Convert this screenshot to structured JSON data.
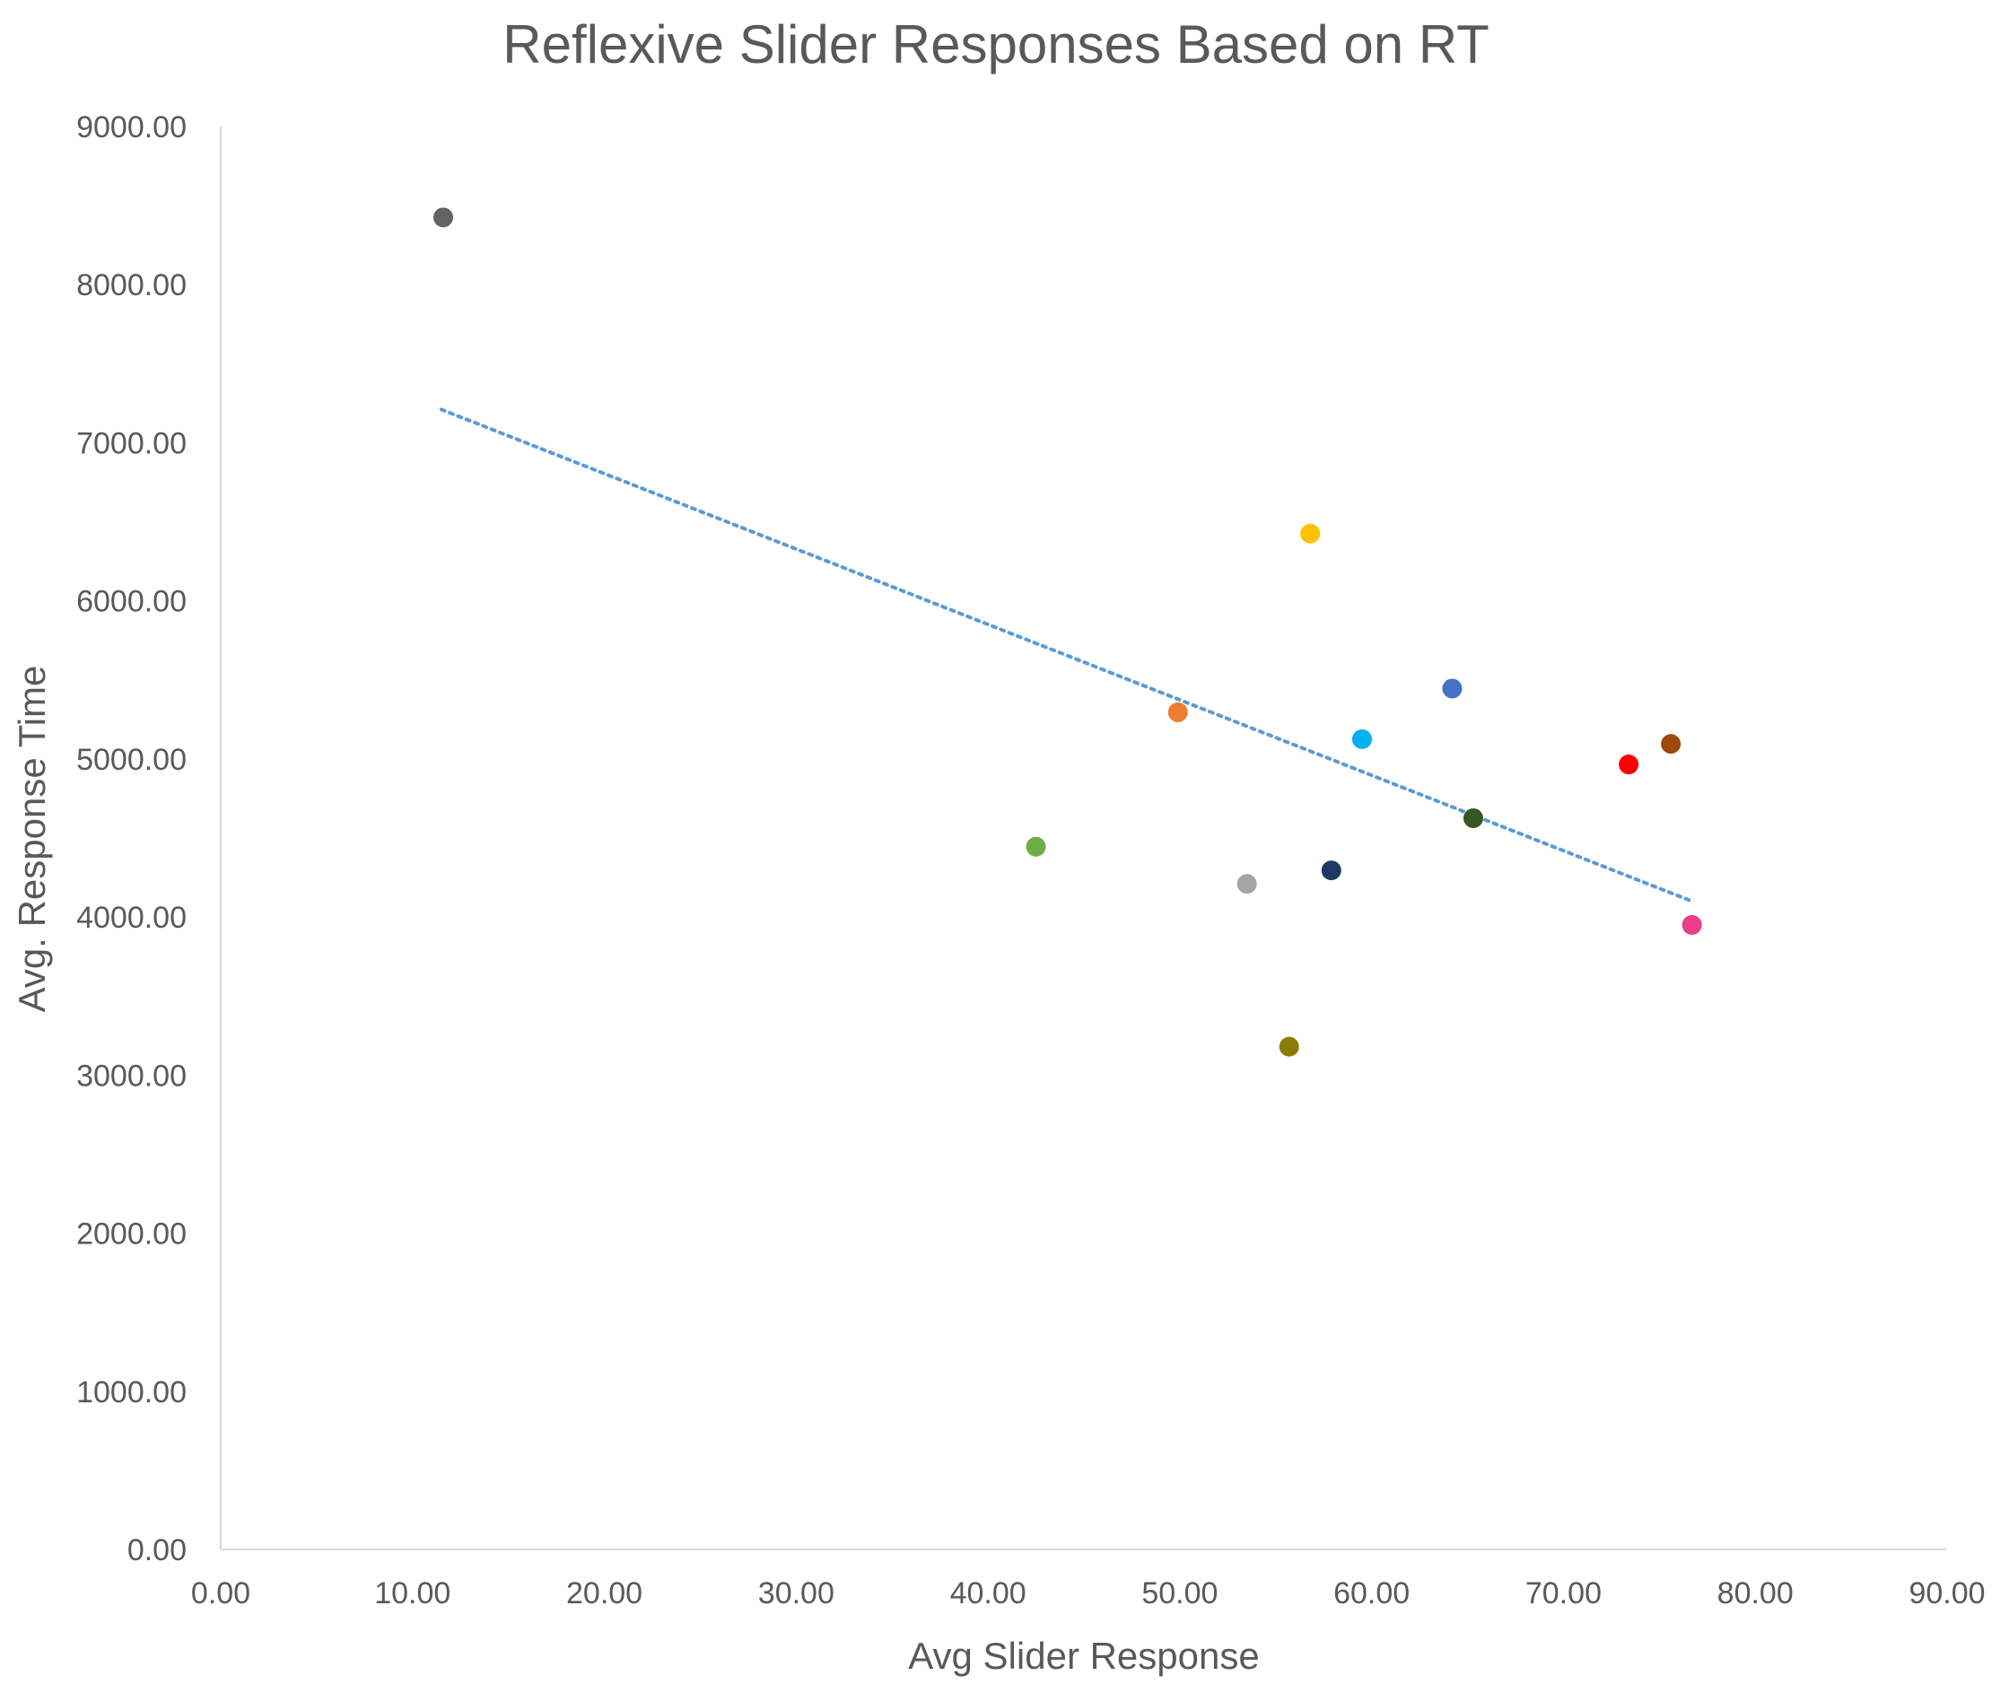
{
  "chart_data": {
    "type": "scatter",
    "title": "Reflexive Slider Responses Based on RT",
    "xlabel": "Avg Slider Response",
    "ylabel": "Avg. Response Time",
    "xlim": [
      0,
      90
    ],
    "ylim": [
      0,
      9000
    ],
    "x_ticks": [
      "0.00",
      "10.00",
      "20.00",
      "30.00",
      "40.00",
      "50.00",
      "60.00",
      "70.00",
      "80.00",
      "90.00"
    ],
    "y_ticks": [
      "0.00",
      "1000.00",
      "2000.00",
      "3000.00",
      "4000.00",
      "5000.00",
      "6000.00",
      "7000.00",
      "8000.00",
      "9000.00"
    ],
    "grid": false,
    "legend": "none",
    "points": [
      {
        "x": 11.6,
        "y": 8425,
        "color": "#636363"
      },
      {
        "x": 42.5,
        "y": 4445,
        "color": "#70ad47"
      },
      {
        "x": 49.9,
        "y": 5295,
        "color": "#ed7d31"
      },
      {
        "x": 53.5,
        "y": 4210,
        "color": "#a5a5a5"
      },
      {
        "x": 55.7,
        "y": 3180,
        "color": "#8c7b00"
      },
      {
        "x": 56.8,
        "y": 6425,
        "color": "#ffc000"
      },
      {
        "x": 57.9,
        "y": 4295,
        "color": "#1f3864"
      },
      {
        "x": 59.5,
        "y": 5125,
        "color": "#00b0f0"
      },
      {
        "x": 64.2,
        "y": 5445,
        "color": "#4472c4"
      },
      {
        "x": 65.3,
        "y": 4625,
        "color": "#375623"
      },
      {
        "x": 73.4,
        "y": 4965,
        "color": "#ff0000"
      },
      {
        "x": 75.6,
        "y": 5095,
        "color": "#9e480e"
      },
      {
        "x": 76.7,
        "y": 3950,
        "color": "#e83e8c"
      }
    ],
    "trendline": {
      "type": "linear",
      "style": "dotted",
      "color": "#5b9bd5",
      "x": [
        11.5,
        76.7
      ],
      "y": [
        7210,
        4100
      ]
    }
  }
}
